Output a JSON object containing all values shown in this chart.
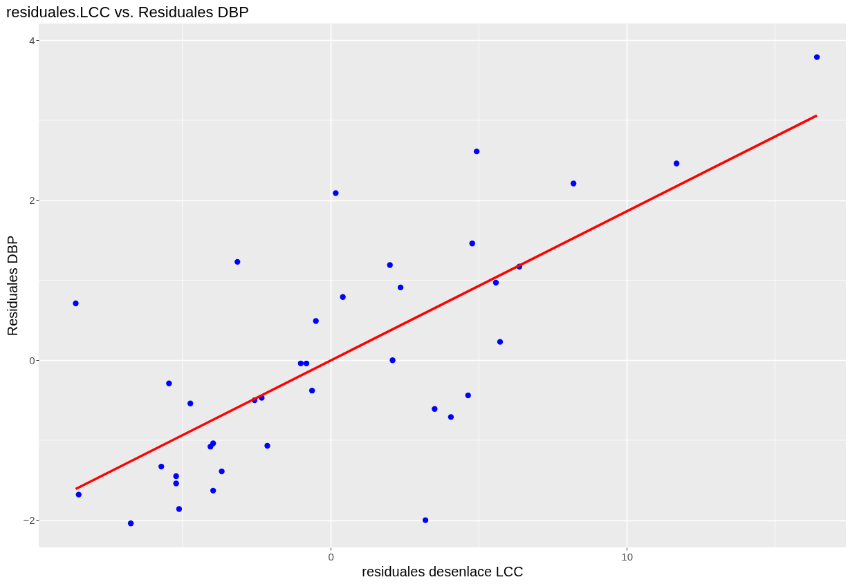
{
  "chart_data": {
    "type": "scatter",
    "title": "residuales.LCC vs. Residuales DBP",
    "xlabel": "residuales desenlace LCC",
    "ylabel": "Residuales DBP",
    "xlim": [
      -9.86,
      17.4
    ],
    "ylim": [
      -2.34,
      4.21
    ],
    "xticks": [
      0,
      10
    ],
    "yticks": [
      {
        "value": -2,
        "label": "−2"
      },
      0,
      2,
      4
    ],
    "grid": true,
    "series": [
      {
        "marker": "circle",
        "color": "#0000ff",
        "x": [
          -8.61,
          -8.51,
          -6.75,
          -5.72,
          -5.46,
          -5.22,
          -5.22,
          -5.12,
          -4.74,
          -4.06,
          -3.97,
          -3.97,
          -3.68,
          -3.15,
          -2.57,
          -2.33,
          -2.14,
          -1.01,
          -0.82,
          -0.63,
          -0.5,
          0.17,
          0.41,
          2.0,
          2.09,
          2.36,
          3.2,
          3.51,
          4.06,
          4.64,
          4.78,
          4.93,
          5.58,
          5.72,
          6.37,
          8.2,
          11.68,
          16.42
        ],
        "values": [
          0.71,
          -1.68,
          -2.04,
          -1.33,
          -0.29,
          -1.45,
          -1.54,
          -1.86,
          -0.54,
          -1.08,
          -1.04,
          -1.63,
          -1.39,
          1.23,
          -0.5,
          -0.47,
          -1.07,
          -0.04,
          -0.04,
          -0.38,
          0.49,
          2.09,
          0.79,
          1.19,
          0.0,
          0.91,
          -2.0,
          -0.61,
          -0.71,
          -0.44,
          1.46,
          2.61,
          0.97,
          0.23,
          1.17,
          2.21,
          2.46,
          3.79
        ]
      },
      {
        "type": "line",
        "color": "#ff0000",
        "x": [
          -8.61,
          16.42
        ],
        "values": [
          -1.61,
          3.06
        ]
      }
    ]
  }
}
